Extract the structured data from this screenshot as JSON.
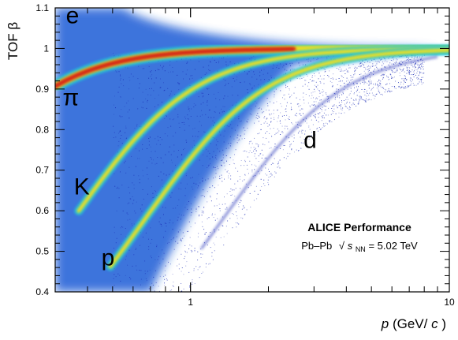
{
  "chart_data": {
    "type": "heatmap",
    "xaxis": {
      "label_italic": "p",
      "label_rest": " (GeV/",
      "label_c": "c",
      "label_close": ")",
      "scale": "log",
      "range": [
        0.3,
        10
      ],
      "tick_labels": [
        {
          "value": 1,
          "text": "1"
        },
        {
          "value": 10,
          "text": "10"
        }
      ]
    },
    "yaxis": {
      "label": "TOF β",
      "range": [
        0.4,
        1.1
      ],
      "ticks": [
        0.4,
        0.5,
        0.6,
        0.7,
        0.8,
        0.9,
        1.0,
        1.1
      ],
      "tick_labels": [
        "0.4",
        "0.5",
        "0.6",
        "0.7",
        "0.8",
        "0.9",
        "1",
        "1.1"
      ]
    },
    "bands": [
      {
        "label": "e",
        "mass": 0.000511,
        "label_at": {
          "p": 0.35,
          "beta": 1.062
        }
      },
      {
        "label": "π",
        "mass": 0.1396,
        "label_at": {
          "p": 0.345,
          "beta": 0.86
        }
      },
      {
        "label": "K",
        "mass": 0.4937,
        "label_at": {
          "p": 0.38,
          "beta": 0.64
        }
      },
      {
        "label": "p",
        "mass": 0.9383,
        "label_at": {
          "p": 0.48,
          "beta": 0.465
        }
      },
      {
        "label": "d",
        "mass": 1.8756,
        "label_at": {
          "p": 2.9,
          "beta": 0.755
        }
      }
    ],
    "annotation": {
      "title": "ALICE Performance",
      "system": "Pb–Pb",
      "energy_symbol": "s",
      "energy_subscript": "NN",
      "energy_value": " = 5.02 TeV"
    },
    "colors": {
      "background_fill": "#1a5bd6",
      "sparse_points": "#1a2bb5",
      "band_core": "#d41f14",
      "band_mid": "#f2df1e",
      "band_edge": "#23c6d8"
    }
  }
}
